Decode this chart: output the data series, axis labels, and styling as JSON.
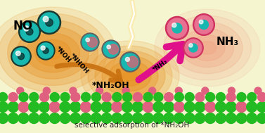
{
  "bg_color": "#f5f5d0",
  "title_text": "selective adsorption of *NH₂OH",
  "no_label": "NO",
  "nh3_label": "NH₃",
  "label_noh": "*NOH",
  "label_nhoh": "*NHOH",
  "label_nh2oh": "*NH₂OH",
  "label_nh2": "*NH₂",
  "surface_green": "#22bb22",
  "surface_pink": "#e06080",
  "mol_teal": "#18b8b0",
  "mol_dark": "#183830",
  "mol_pink_outer": "#d03060",
  "mol_pink_inner": "#e87090",
  "mol_red": "#cc2020",
  "glow_orange": "#e89020",
  "arrow_pink": "#e0108a",
  "arrow_orange": "#c87010",
  "lightning_color": "#ffffff"
}
